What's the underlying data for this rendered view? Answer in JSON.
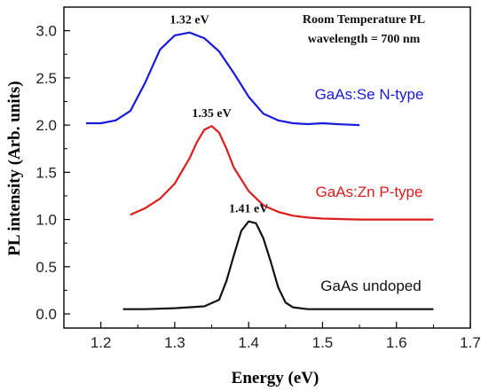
{
  "chart_data": {
    "type": "line",
    "xlabel": "Energy (eV)",
    "ylabel": "PL intensity (Arb. units)",
    "xlim": [
      1.15,
      1.7
    ],
    "ylim": [
      -0.15,
      3.25
    ],
    "xticks": [
      "1.2",
      "1.3",
      "1.4",
      "1.5",
      "1.6",
      "1.7"
    ],
    "yticks": [
      "0.0",
      "0.5",
      "1.0",
      "1.5",
      "2.0",
      "2.5",
      "3.0"
    ],
    "annotation": [
      "Room Temperature PL",
      "wavelength = 700 nm"
    ],
    "series": [
      {
        "name": "GaAs:Se N-type",
        "color": "#1a1adb",
        "peak_label": "1.32 eV",
        "x": [
          1.18,
          1.2,
          1.22,
          1.24,
          1.26,
          1.28,
          1.3,
          1.32,
          1.34,
          1.36,
          1.38,
          1.4,
          1.42,
          1.44,
          1.46,
          1.48,
          1.5,
          1.52,
          1.55
        ],
        "y": [
          2.02,
          2.02,
          2.05,
          2.15,
          2.45,
          2.8,
          2.95,
          2.98,
          2.92,
          2.78,
          2.55,
          2.3,
          2.12,
          2.05,
          2.02,
          2.01,
          2.02,
          2.01,
          2.0
        ]
      },
      {
        "name": "GaAs:Zn P-type",
        "color": "#dd1c1c",
        "peak_label": "1.35 eV",
        "x": [
          1.24,
          1.26,
          1.28,
          1.3,
          1.32,
          1.33,
          1.34,
          1.35,
          1.36,
          1.37,
          1.38,
          1.4,
          1.42,
          1.44,
          1.46,
          1.48,
          1.5,
          1.55,
          1.6,
          1.65
        ],
        "y": [
          1.05,
          1.12,
          1.22,
          1.38,
          1.65,
          1.82,
          1.95,
          1.99,
          1.92,
          1.75,
          1.55,
          1.3,
          1.15,
          1.08,
          1.04,
          1.02,
          1.01,
          1.0,
          1.0,
          1.0
        ]
      },
      {
        "name": "GaAs undoped",
        "color": "#111111",
        "peak_label": "1.41 eV",
        "x": [
          1.23,
          1.26,
          1.3,
          1.34,
          1.36,
          1.37,
          1.38,
          1.39,
          1.4,
          1.41,
          1.42,
          1.43,
          1.44,
          1.45,
          1.46,
          1.48,
          1.5,
          1.55,
          1.6,
          1.65
        ],
        "y": [
          0.05,
          0.05,
          0.06,
          0.08,
          0.15,
          0.35,
          0.62,
          0.88,
          0.98,
          0.96,
          0.8,
          0.55,
          0.28,
          0.12,
          0.07,
          0.05,
          0.05,
          0.05,
          0.05,
          0.05
        ]
      }
    ]
  }
}
